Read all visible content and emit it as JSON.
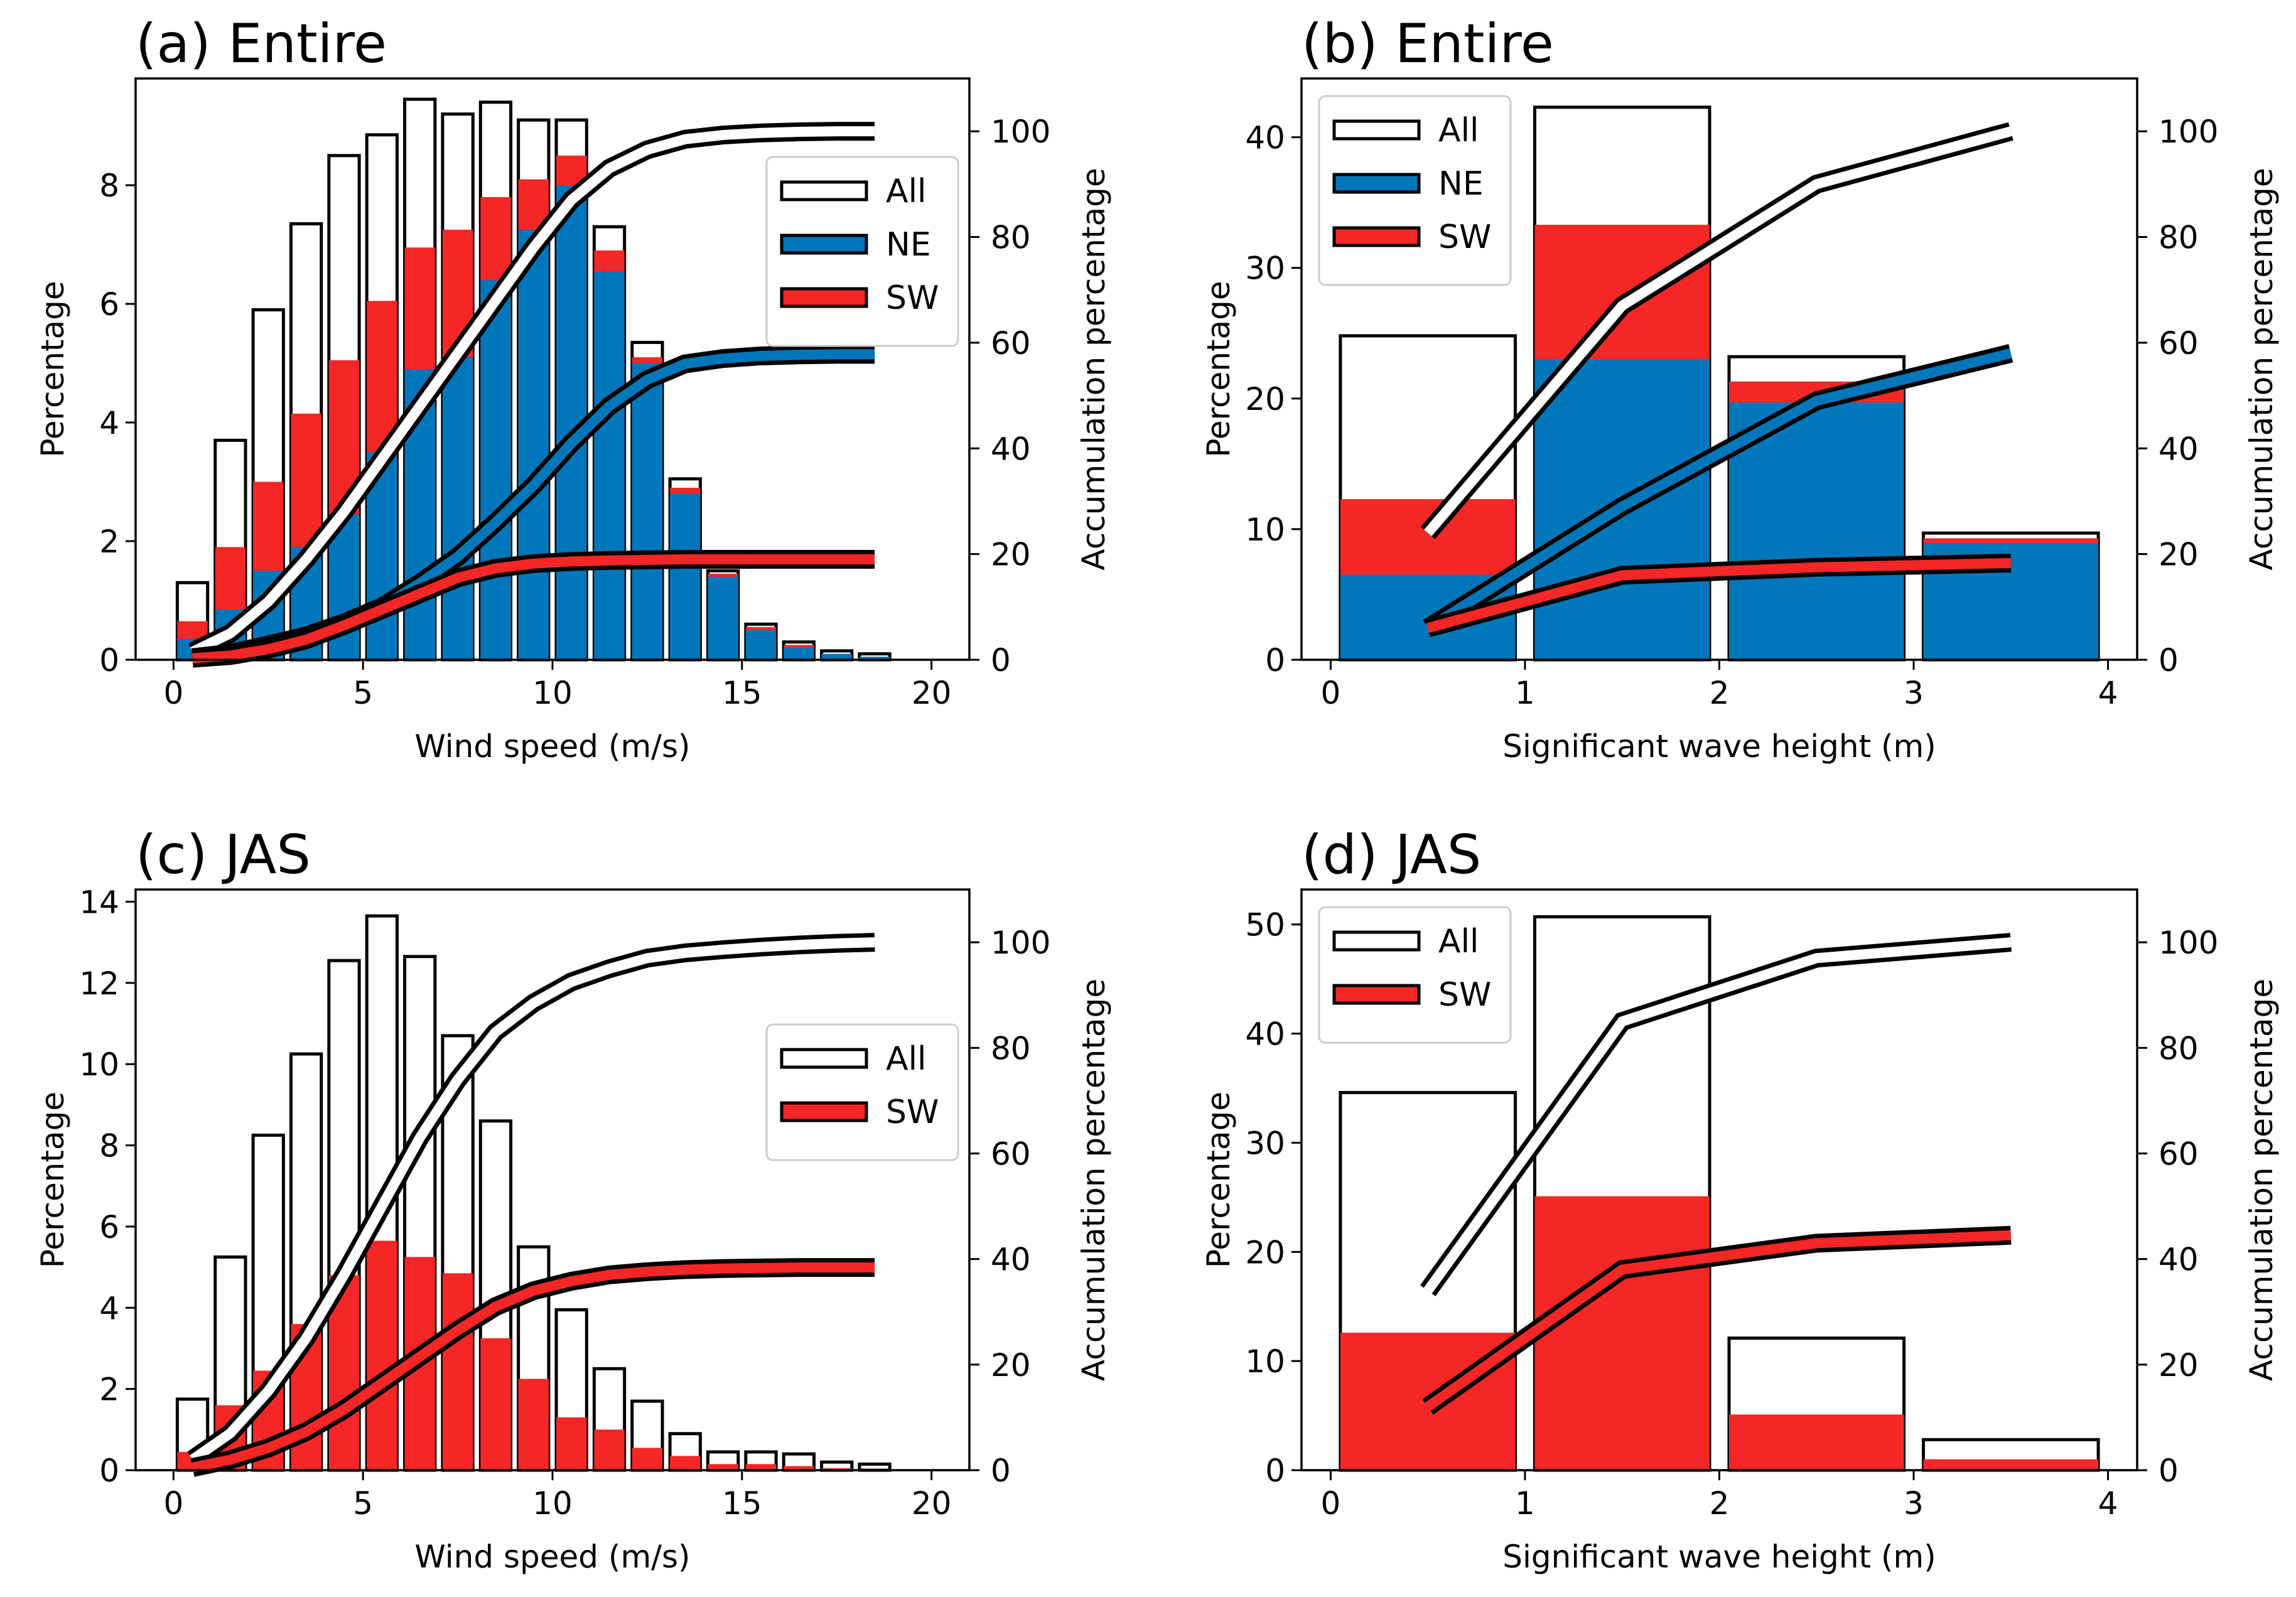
{
  "colors": {
    "all": "#ffffff",
    "ne": "#0077bb",
    "sw": "#f52626",
    "edge": "#000000"
  },
  "chart_data": [
    {
      "panel": "a",
      "type": "bar",
      "title": "(a) Entire",
      "xlabel": "Wind speed (m/s)",
      "ylabel": "Percentage",
      "ylabel_right": "Accumulation percentage",
      "xlim": [
        -1,
        21
      ],
      "ylim": [
        0,
        9.8
      ],
      "ylim_right": [
        0,
        110
      ],
      "xticks": [
        "0",
        "5",
        "10",
        "15",
        "20"
      ],
      "yticks": [
        "0",
        "2",
        "4",
        "6",
        "8"
      ],
      "yticks_right": [
        "0",
        "20",
        "40",
        "60",
        "80",
        "100"
      ],
      "bar_width": 0.8,
      "x": [
        0.5,
        1.5,
        2.5,
        3.5,
        4.5,
        5.5,
        6.5,
        7.5,
        8.5,
        9.5,
        10.5,
        11.5,
        12.5,
        13.5,
        14.5,
        15.5,
        16.5,
        17.5,
        18.5
      ],
      "legend": [
        "All",
        "NE",
        "SW"
      ],
      "legend_position": "upper-right",
      "series": [
        {
          "name": "All",
          "color": "all",
          "values": [
            1.3,
            3.7,
            5.9,
            7.35,
            8.5,
            8.85,
            9.45,
            9.2,
            9.4,
            9.1,
            9.1,
            7.3,
            5.35,
            3.05,
            1.5,
            0.6,
            0.3,
            0.15,
            0.1
          ]
        },
        {
          "name": "SW",
          "color": "sw",
          "values": [
            0.65,
            1.9,
            3.0,
            4.15,
            5.05,
            6.05,
            6.95,
            7.25,
            7.8,
            8.1,
            8.5,
            6.9,
            5.1,
            2.9,
            1.45,
            0.55,
            0.25,
            0.1,
            0.05
          ]
        },
        {
          "name": "NE",
          "color": "ne",
          "values": [
            0.35,
            0.85,
            1.5,
            1.9,
            2.45,
            3.5,
            4.9,
            5.1,
            6.4,
            7.25,
            8.0,
            6.55,
            5.0,
            2.8,
            1.4,
            0.5,
            0.2,
            0.1,
            0.05
          ]
        }
      ],
      "lines": [
        {
          "name": "All",
          "color": "all",
          "values": [
            1.5,
            5,
            11,
            19,
            28,
            38,
            48,
            58,
            68,
            78,
            87,
            93,
            96.5,
            98.5,
            99.3,
            99.7,
            99.9,
            100,
            100
          ]
        },
        {
          "name": "NE",
          "color": "ne",
          "values": [
            0.4,
            1.2,
            2.8,
            4.5,
            7,
            10,
            14.5,
            19.5,
            26,
            33,
            41,
            48,
            53,
            56,
            57,
            57.5,
            57.7,
            57.8,
            57.8
          ]
        },
        {
          "name": "SW",
          "color": "sw",
          "values": [
            0.3,
            0.8,
            2,
            3.8,
            6.5,
            9.5,
            12.5,
            15.5,
            17.3,
            18.2,
            18.6,
            18.8,
            18.9,
            19,
            19,
            19,
            19,
            19,
            19
          ]
        }
      ]
    },
    {
      "panel": "b",
      "type": "bar",
      "title": "(b) Entire",
      "xlabel": "Significant wave height (m)",
      "ylabel": "Percentage",
      "ylabel_right": "Accumulation percentage",
      "xlim": [
        -0.15,
        4.15
      ],
      "ylim": [
        0,
        44.5
      ],
      "ylim_right": [
        0,
        110
      ],
      "xticks": [
        "0",
        "1",
        "2",
        "3",
        "4"
      ],
      "yticks": [
        "0",
        "10",
        "20",
        "30",
        "40"
      ],
      "yticks_right": [
        "0",
        "20",
        "40",
        "60",
        "80",
        "100"
      ],
      "bar_width": 0.9,
      "x": [
        0.5,
        1.5,
        2.5,
        3.5
      ],
      "legend": [
        "All",
        "NE",
        "SW"
      ],
      "legend_position": "upper-left",
      "series": [
        {
          "name": "All",
          "color": "all",
          "values": [
            24.8,
            42.3,
            23.2,
            9.7
          ]
        },
        {
          "name": "SW",
          "color": "sw",
          "values": [
            12.3,
            33.3,
            21.3,
            9.3
          ]
        },
        {
          "name": "NE",
          "color": "ne",
          "values": [
            6.5,
            23.0,
            19.7,
            8.9
          ]
        }
      ],
      "lines": [
        {
          "name": "All",
          "color": "all",
          "values": [
            24,
            67,
            90,
            100
          ]
        },
        {
          "name": "NE",
          "color": "ne",
          "values": [
            6,
            29,
            49,
            58
          ]
        },
        {
          "name": "SW",
          "color": "sw",
          "values": [
            6,
            16,
            17.5,
            18.3
          ]
        }
      ]
    },
    {
      "panel": "c",
      "type": "bar",
      "title": "(c) JAS",
      "xlabel": "Wind speed (m/s)",
      "ylabel": "Percentage",
      "ylabel_right": "Accumulation percentage",
      "xlim": [
        -1,
        21
      ],
      "ylim": [
        0,
        14.3
      ],
      "ylim_right": [
        0,
        110
      ],
      "xticks": [
        "0",
        "5",
        "10",
        "15",
        "20"
      ],
      "yticks": [
        "0",
        "2",
        "4",
        "6",
        "8",
        "10",
        "12",
        "14"
      ],
      "yticks_right": [
        "0",
        "20",
        "40",
        "60",
        "80",
        "100"
      ],
      "bar_width": 0.8,
      "x": [
        0.5,
        1.5,
        2.5,
        3.5,
        4.5,
        5.5,
        6.5,
        7.5,
        8.5,
        9.5,
        10.5,
        11.5,
        12.5,
        13.5,
        14.5,
        15.5,
        16.5,
        17.5,
        18.5
      ],
      "legend": [
        "All",
        "SW"
      ],
      "legend_position": "right",
      "series": [
        {
          "name": "All",
          "color": "all",
          "values": [
            1.75,
            5.25,
            8.25,
            10.25,
            12.55,
            13.65,
            12.65,
            10.7,
            8.6,
            5.5,
            3.95,
            2.5,
            1.7,
            0.9,
            0.45,
            0.45,
            0.4,
            0.2,
            0.15
          ]
        },
        {
          "name": "SW",
          "color": "sw",
          "values": [
            0.45,
            1.6,
            2.45,
            3.6,
            4.8,
            5.65,
            5.25,
            4.85,
            3.25,
            2.25,
            1.3,
            1.0,
            0.55,
            0.35,
            0.15,
            0.15,
            0.1,
            0.05,
            0.03
          ]
        }
      ],
      "lines": [
        {
          "name": "All",
          "color": "all",
          "values": [
            2,
            7,
            15,
            25,
            37,
            50,
            63,
            74,
            83,
            88.5,
            92.5,
            95,
            97,
            98,
            98.6,
            99.1,
            99.5,
            99.8,
            100
          ]
        },
        {
          "name": "SW",
          "color": "sw",
          "values": [
            0.5,
            2,
            4.2,
            7.3,
            11.5,
            16.5,
            21.5,
            26.5,
            31,
            34,
            35.8,
            37,
            37.6,
            38,
            38.2,
            38.3,
            38.4,
            38.4,
            38.4
          ]
        }
      ]
    },
    {
      "panel": "d",
      "type": "bar",
      "title": "(d) JAS",
      "xlabel": "Significant wave height (m)",
      "ylabel": "Percentage",
      "ylabel_right": "Accumulation percentage",
      "xlim": [
        -0.15,
        4.15
      ],
      "ylim": [
        0,
        53.2
      ],
      "ylim_right": [
        0,
        110
      ],
      "xticks": [
        "0",
        "1",
        "2",
        "3",
        "4"
      ],
      "yticks": [
        "0",
        "10",
        "20",
        "30",
        "40",
        "50"
      ],
      "yticks_right": [
        "0",
        "20",
        "40",
        "60",
        "80",
        "100"
      ],
      "bar_width": 0.9,
      "x": [
        0.5,
        1.5,
        2.5,
        3.5
      ],
      "legend": [
        "All",
        "SW"
      ],
      "legend_position": "upper-left",
      "series": [
        {
          "name": "All",
          "color": "all",
          "values": [
            34.6,
            50.7,
            12.1,
            2.8
          ]
        },
        {
          "name": "SW",
          "color": "sw",
          "values": [
            12.6,
            25.1,
            5.1,
            1.0
          ]
        }
      ],
      "lines": [
        {
          "name": "All",
          "color": "all",
          "values": [
            34,
            85,
            97,
            100
          ]
        },
        {
          "name": "SW",
          "color": "sw",
          "values": [
            12,
            38,
            43,
            44.5
          ]
        }
      ]
    }
  ]
}
